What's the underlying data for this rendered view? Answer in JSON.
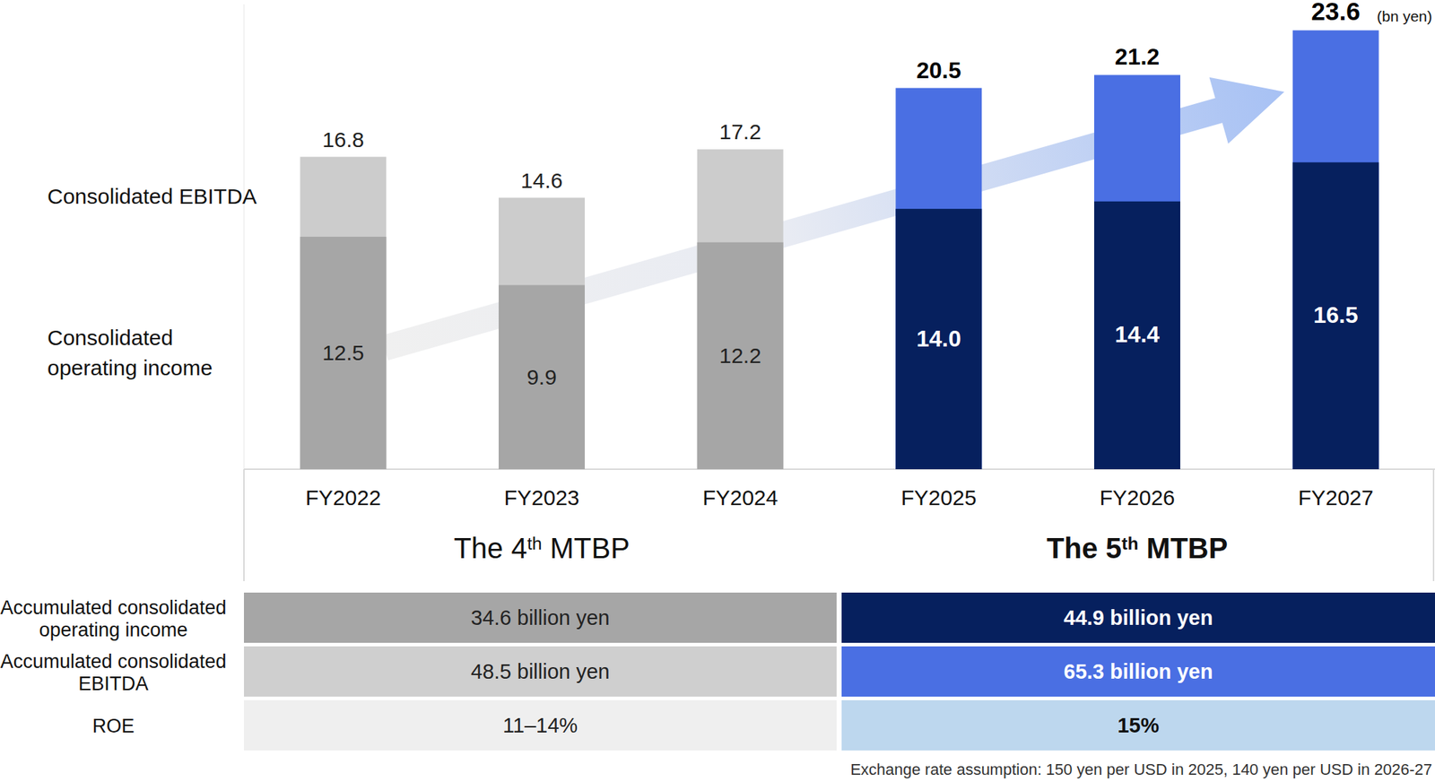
{
  "chart_data": {
    "type": "bar",
    "ylabel": "(bn yen)",
    "categories": [
      "FY2022",
      "FY2023",
      "FY2024",
      "FY2025",
      "FY2026",
      "FY2027"
    ],
    "series": [
      {
        "name": "Consolidated EBITDA",
        "colors": [
          "#cccccc",
          "#cccccc",
          "#cccccc",
          "#4a6fe3",
          "#4a6fe3",
          "#4a6fe3"
        ],
        "values": [
          16.8,
          14.6,
          17.2,
          20.5,
          21.2,
          23.6
        ]
      },
      {
        "name": "Consolidated operating income",
        "colors": [
          "#a6a6a6",
          "#a6a6a6",
          "#a6a6a6",
          "#06205e",
          "#06205e",
          "#06205e"
        ],
        "values": [
          12.5,
          9.9,
          12.2,
          14.0,
          14.4,
          16.5
        ],
        "value_labels": [
          "12.5",
          "9.9",
          "12.2",
          "14.0",
          "14.4",
          "16.5"
        ]
      }
    ],
    "stacked": false,
    "data_labels": true,
    "tick_labels": "x",
    "ylim": [
      0,
      25
    ],
    "yticks": []
  },
  "table": {
    "periods": [
      "The 4th MTBP",
      "The 5th MTBP"
    ],
    "rows": [
      {
        "label": "Accumulated consolidated operating income",
        "values": [
          "34.6 billion yen",
          "44.9 billion yen"
        ]
      },
      {
        "label": "Accumulated consolidated EBITDA",
        "values": [
          "48.5 billion yen",
          "65.3 billion yen"
        ]
      },
      {
        "label": "ROE",
        "values": [
          "11–14%",
          "15%"
        ]
      }
    ]
  },
  "note": "Exchange rate assumption: 150 yen per USD in 2025, 140 yen per USD in 2026-27"
}
